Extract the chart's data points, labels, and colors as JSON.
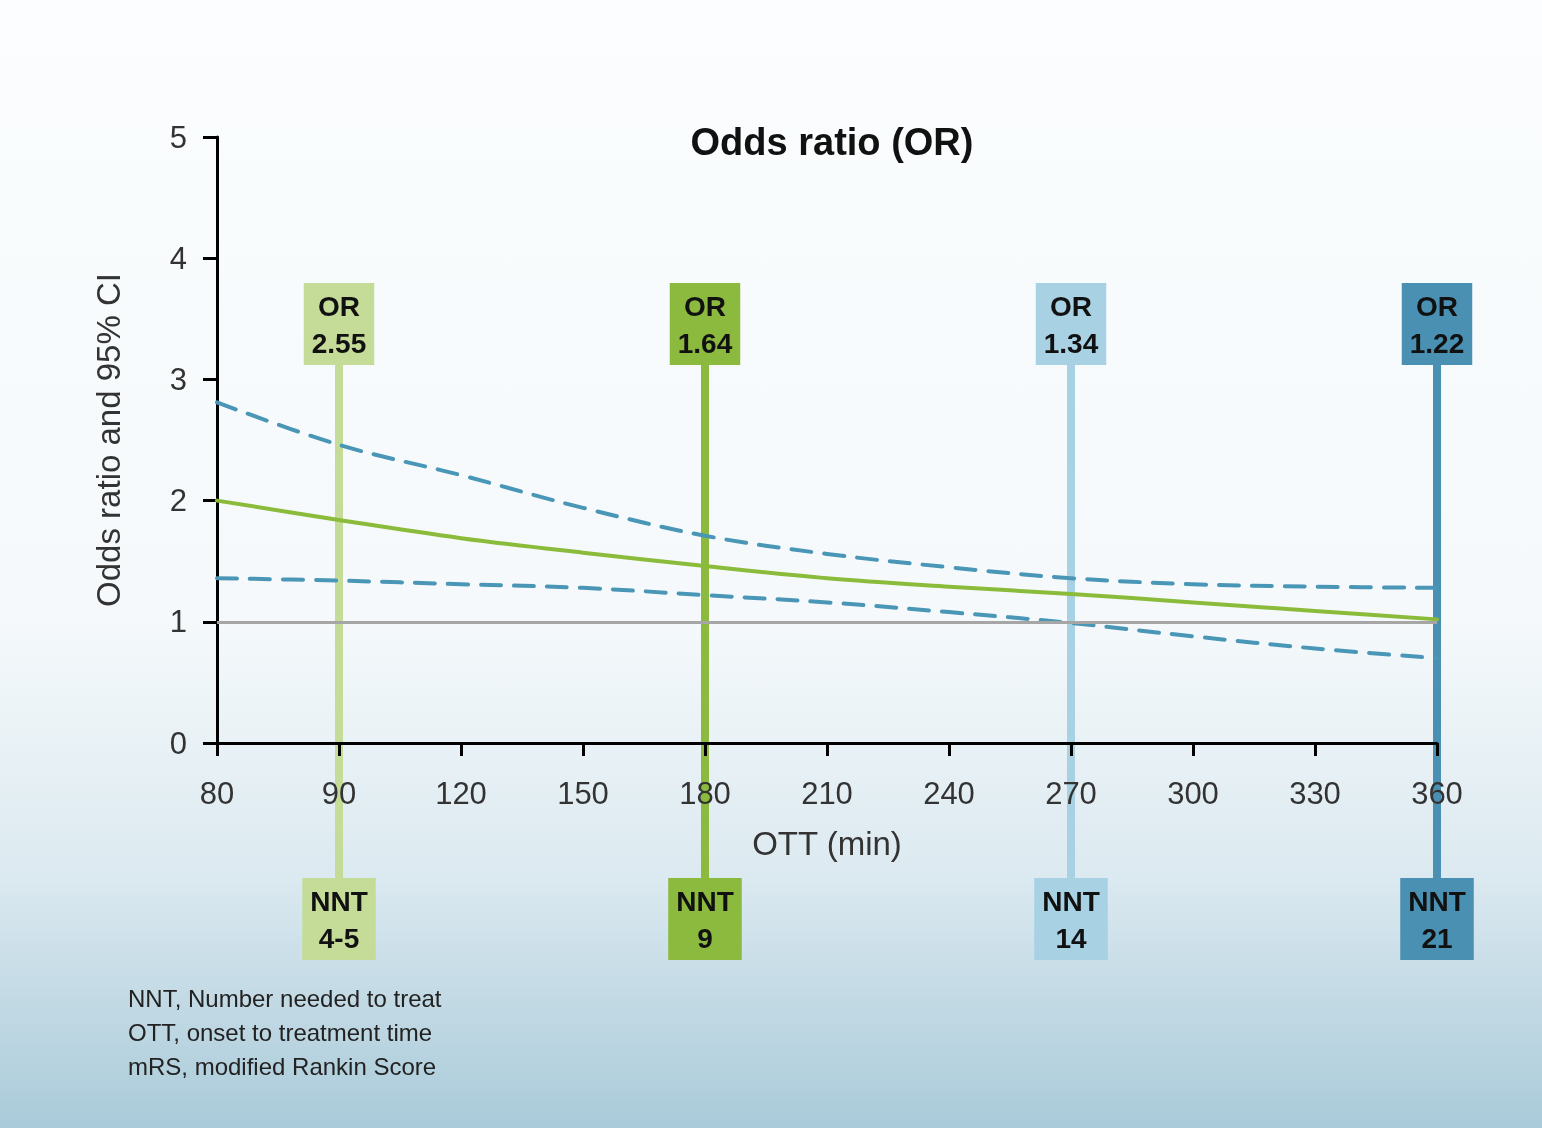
{
  "chart_data": {
    "type": "line",
    "title": "Odds ratio (OR)",
    "xlabel": "OTT (min)",
    "ylabel": "Odds ratio and 95% CI",
    "categories": [
      "80",
      "90",
      "120",
      "150",
      "180",
      "210",
      "240",
      "270",
      "300",
      "330",
      "360"
    ],
    "series": [
      {
        "color": "#8bbb3a",
        "line_style": "solid",
        "values": [
          2,
          1.84,
          1.69,
          1.57,
          1.46,
          1.36,
          1.29,
          1.23,
          1.16,
          1.09,
          1.02
        ]
      },
      {
        "color": "#4a96b6",
        "line_style": "dashed",
        "values": [
          2.81,
          2.46,
          2.21,
          1.94,
          1.71,
          1.56,
          1.45,
          1.36,
          1.31,
          1.29,
          1.28
        ]
      },
      {
        "color": "#4a96b6",
        "line_style": "dashed",
        "values": [
          1.36,
          1.34,
          1.31,
          1.28,
          1.22,
          1.16,
          1.08,
          0.99,
          0.88,
          0.78,
          0.7
        ]
      }
    ],
    "ylim": [
      0,
      5
    ],
    "yticks": [
      0,
      1,
      2,
      3,
      4,
      5
    ],
    "marker": "none",
    "ref_lines": [
      {
        "axis": "y",
        "value": 1,
        "color": "#a6a6a6"
      },
      {
        "axis": "x",
        "value": "90",
        "label": "OR\n2.55",
        "color": "#c5dc98"
      },
      {
        "axis": "x",
        "value": "180",
        "label": "OR\n1.64",
        "color": "#8cba3f"
      },
      {
        "axis": "x",
        "value": "270",
        "label": "OR\n1.34",
        "color": "#a8d2e4"
      },
      {
        "axis": "x",
        "value": "360",
        "label": "OR\n1.22",
        "color": "#4a90b2"
      }
    ],
    "annotations": [
      {
        "text": "NNT\n4-5",
        "x": "90"
      },
      {
        "text": "NNT\n9",
        "x": "180"
      },
      {
        "text": "NNT\n14",
        "x": "270"
      },
      {
        "text": "NNT\n21",
        "x": "360"
      },
      "NNT, Number needed to treat",
      "OTT, onset to treatment time",
      "mRS, modified Rankin Score"
    ]
  }
}
